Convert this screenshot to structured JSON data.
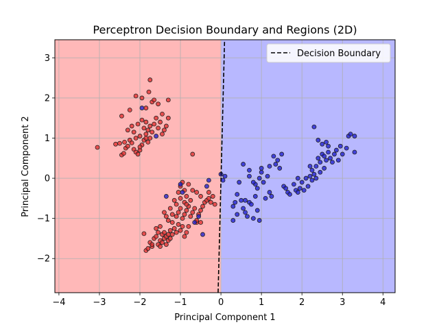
{
  "chart_data": {
    "type": "scatter",
    "title": "Perceptron Decision Boundary and Regions (2D)",
    "xlabel": "Principal Component 1",
    "ylabel": "Principal Component 2",
    "xlim": [
      -4.1,
      4.3
    ],
    "ylim": [
      -2.85,
      3.45
    ],
    "xticks": [
      -4,
      -3,
      -2,
      -1,
      0,
      1,
      2,
      3,
      4
    ],
    "xtick_labels": [
      "−4",
      "−3",
      "−2",
      "−1",
      "0",
      "1",
      "2",
      "3",
      "4"
    ],
    "yticks": [
      -2,
      -1,
      0,
      1,
      2,
      3
    ],
    "ytick_labels": [
      "−2",
      "−1",
      "0",
      "1",
      "2",
      "3"
    ],
    "grid": true,
    "legend_position": "top-right",
    "legend": [
      "Decision Boundary"
    ],
    "colors": {
      "region_left": "#ffb8b8",
      "region_right": "#b8b8ff",
      "class_left": "#e03030",
      "class_right": "#2020d0",
      "boundary": "#000000"
    },
    "boundary_line": {
      "x": [
        -0.07,
        0.09
      ],
      "y": [
        -2.85,
        3.45
      ]
    },
    "series": [
      {
        "color": "red",
        "points": [
          [
            -3.05,
            0.77
          ],
          [
            -2.6,
            0.85
          ],
          [
            -2.5,
            0.87
          ],
          [
            -2.45,
            0.58
          ],
          [
            -2.4,
            0.62
          ],
          [
            -2.38,
            0.9
          ],
          [
            -2.35,
            0.75
          ],
          [
            -2.3,
            0.8
          ],
          [
            -2.25,
            0.95
          ],
          [
            -2.2,
            0.88
          ],
          [
            -2.15,
            0.72
          ],
          [
            -2.1,
            0.65
          ],
          [
            -2.05,
            0.6
          ],
          [
            -2.0,
            0.7
          ],
          [
            -1.95,
            0.83
          ],
          [
            -2.1,
            1.0
          ],
          [
            -2.0,
            1.05
          ],
          [
            -1.9,
            0.95
          ],
          [
            -1.85,
            1.1
          ],
          [
            -1.8,
            0.9
          ],
          [
            -1.75,
            1.0
          ],
          [
            -2.3,
            1.2
          ],
          [
            -2.2,
            1.3
          ],
          [
            -2.15,
            1.15
          ],
          [
            -2.05,
            1.35
          ],
          [
            -1.95,
            1.45
          ],
          [
            -1.9,
            1.25
          ],
          [
            -1.85,
            1.4
          ],
          [
            -1.8,
            1.2
          ],
          [
            -1.75,
            1.3
          ],
          [
            -1.7,
            1.15
          ],
          [
            -1.65,
            1.35
          ],
          [
            -1.6,
            1.5
          ],
          [
            -1.55,
            1.25
          ],
          [
            -1.5,
            1.4
          ],
          [
            -1.45,
            1.1
          ],
          [
            -1.4,
            1.2
          ],
          [
            -1.35,
            1.3
          ],
          [
            -2.45,
            1.55
          ],
          [
            -2.25,
            1.7
          ],
          [
            -2.1,
            2.05
          ],
          [
            -1.95,
            2.0
          ],
          [
            -1.85,
            1.75
          ],
          [
            -1.78,
            2.15
          ],
          [
            -1.75,
            2.45
          ],
          [
            -1.7,
            1.9
          ],
          [
            -1.65,
            1.95
          ],
          [
            -1.55,
            1.85
          ],
          [
            -1.45,
            1.6
          ],
          [
            -1.3,
            1.95
          ],
          [
            -1.3,
            1.5
          ],
          [
            -1.85,
            1.0
          ],
          [
            -2.0,
            0.78
          ],
          [
            -1.9,
            -1.38
          ],
          [
            -1.85,
            -1.8
          ],
          [
            -1.8,
            -1.75
          ],
          [
            -1.75,
            -1.6
          ],
          [
            -1.7,
            -1.7
          ],
          [
            -1.65,
            -1.5
          ],
          [
            -1.6,
            -1.45
          ],
          [
            -1.55,
            -1.65
          ],
          [
            -1.5,
            -1.55
          ],
          [
            -1.5,
            -1.7
          ],
          [
            -1.45,
            -1.4
          ],
          [
            -1.45,
            -1.6
          ],
          [
            -1.4,
            -1.5
          ],
          [
            -1.4,
            -1.35
          ],
          [
            -1.35,
            -1.65
          ],
          [
            -1.35,
            -1.45
          ],
          [
            -1.3,
            -1.55
          ],
          [
            -1.3,
            -1.4
          ],
          [
            -1.25,
            -1.5
          ],
          [
            -1.25,
            -1.3
          ],
          [
            -1.2,
            -1.1
          ],
          [
            -1.2,
            -1.4
          ],
          [
            -1.15,
            -1.25
          ],
          [
            -1.1,
            -1.35
          ],
          [
            -1.05,
            -1.15
          ],
          [
            -1.0,
            -1.3
          ],
          [
            -0.95,
            -1.2
          ],
          [
            -0.9,
            -1.45
          ],
          [
            -0.85,
            -1.35
          ],
          [
            -0.8,
            -1.2
          ],
          [
            -1.3,
            -1.05
          ],
          [
            -1.35,
            -0.95
          ],
          [
            -1.4,
            -0.85
          ],
          [
            -1.25,
            -0.75
          ],
          [
            -1.2,
            -0.9
          ],
          [
            -1.1,
            -0.95
          ],
          [
            -1.05,
            -0.85
          ],
          [
            -1.0,
            -0.75
          ],
          [
            -0.95,
            -1.0
          ],
          [
            -0.9,
            -0.9
          ],
          [
            -0.85,
            -0.8
          ],
          [
            -0.8,
            -0.7
          ],
          [
            -0.75,
            -0.95
          ],
          [
            -0.7,
            -0.85
          ],
          [
            -0.65,
            -0.75
          ],
          [
            -0.6,
            -1.1
          ],
          [
            -0.55,
            -0.9
          ],
          [
            -0.5,
            -0.8
          ],
          [
            -0.45,
            -0.7
          ],
          [
            -0.4,
            -0.6
          ],
          [
            -0.35,
            -0.55
          ],
          [
            -0.3,
            -0.5
          ],
          [
            -0.25,
            -0.6
          ],
          [
            -0.2,
            -0.45
          ],
          [
            -0.15,
            -0.65
          ],
          [
            -0.3,
            -0.35
          ],
          [
            -0.5,
            -0.45
          ],
          [
            -0.6,
            -0.35
          ],
          [
            -0.7,
            -0.3
          ],
          [
            -0.75,
            -0.55
          ],
          [
            -0.85,
            -0.45
          ],
          [
            -0.9,
            -0.6
          ],
          [
            -1.0,
            -0.5
          ],
          [
            -1.05,
            -0.35
          ],
          [
            -1.0,
            -0.2
          ],
          [
            -0.95,
            -0.1
          ],
          [
            -0.9,
            -0.3
          ],
          [
            -0.8,
            -0.15
          ],
          [
            -0.7,
            0.6
          ],
          [
            -0.6,
            -1.05
          ],
          [
            -0.5,
            -1.1
          ],
          [
            -0.85,
            -0.65
          ],
          [
            -1.1,
            -0.65
          ],
          [
            -1.15,
            -0.55
          ],
          [
            -1.5,
            -1.2
          ],
          [
            -1.6,
            -1.25
          ],
          [
            -1.7,
            -1.65
          ],
          [
            -1.55,
            -1.35
          ]
        ]
      },
      {
        "color": "blue",
        "points": [
          [
            -1.95,
            1.75
          ],
          [
            -1.6,
            1.05
          ],
          [
            -1.35,
            -0.45
          ],
          [
            -1.0,
            -0.15
          ],
          [
            -0.95,
            -0.35
          ],
          [
            -0.65,
            -1.1
          ],
          [
            -0.55,
            -0.95
          ],
          [
            -0.45,
            -1.4
          ],
          [
            -0.35,
            -0.2
          ],
          [
            -0.3,
            -0.05
          ],
          [
            0.0,
            0.1
          ],
          [
            0.05,
            -0.05
          ],
          [
            0.1,
            0.05
          ],
          [
            0.3,
            -1.05
          ],
          [
            0.3,
            -0.7
          ],
          [
            0.35,
            -0.6
          ],
          [
            0.4,
            -0.9
          ],
          [
            0.45,
            -0.1
          ],
          [
            0.5,
            -0.55
          ],
          [
            0.55,
            -0.75
          ],
          [
            0.6,
            -0.55
          ],
          [
            0.65,
            -0.95
          ],
          [
            0.7,
            -0.6
          ],
          [
            0.7,
            0.05
          ],
          [
            0.75,
            -0.65
          ],
          [
            0.8,
            -1.0
          ],
          [
            0.85,
            -0.45
          ],
          [
            0.9,
            -0.8
          ],
          [
            0.9,
            -0.25
          ],
          [
            0.95,
            0.0
          ],
          [
            1.0,
            0.15
          ],
          [
            1.05,
            -0.1
          ],
          [
            1.1,
            -0.5
          ],
          [
            1.15,
            0.05
          ],
          [
            1.2,
            -0.35
          ],
          [
            1.25,
            -0.45
          ],
          [
            0.95,
            -1.05
          ],
          [
            0.85,
            -0.15
          ],
          [
            1.3,
            0.55
          ],
          [
            1.35,
            0.35
          ],
          [
            1.4,
            0.45
          ],
          [
            1.45,
            0.25
          ],
          [
            1.5,
            0.6
          ],
          [
            1.55,
            -0.2
          ],
          [
            1.6,
            -0.25
          ],
          [
            1.65,
            -0.35
          ],
          [
            1.7,
            -0.4
          ],
          [
            1.8,
            -0.15
          ],
          [
            1.85,
            -0.3
          ],
          [
            1.9,
            -0.35
          ],
          [
            1.95,
            -0.25
          ],
          [
            2.0,
            -0.1
          ],
          [
            2.05,
            -0.3
          ],
          [
            2.1,
            0.0
          ],
          [
            2.15,
            -0.2
          ],
          [
            2.2,
            0.05
          ],
          [
            2.25,
            -0.05
          ],
          [
            2.3,
            0.1
          ],
          [
            2.35,
            0.3
          ],
          [
            2.4,
            0.5
          ],
          [
            2.45,
            0.4
          ],
          [
            2.5,
            0.6
          ],
          [
            2.55,
            0.55
          ],
          [
            2.6,
            0.45
          ],
          [
            2.65,
            0.65
          ],
          [
            2.7,
            0.5
          ],
          [
            2.75,
            0.4
          ],
          [
            2.8,
            0.6
          ],
          [
            2.85,
            0.7
          ],
          [
            2.9,
            0.45
          ],
          [
            2.95,
            0.8
          ],
          [
            3.0,
            0.6
          ],
          [
            3.1,
            0.75
          ],
          [
            3.15,
            1.05
          ],
          [
            3.2,
            1.1
          ],
          [
            3.3,
            1.05
          ],
          [
            3.3,
            0.65
          ],
          [
            2.3,
            1.28
          ],
          [
            2.4,
            0.95
          ],
          [
            2.5,
            0.85
          ],
          [
            2.6,
            0.9
          ],
          [
            2.65,
            0.8
          ],
          [
            2.2,
            0.3
          ],
          [
            2.25,
            0.2
          ],
          [
            2.35,
            0.0
          ],
          [
            2.45,
            0.15
          ],
          [
            2.55,
            0.25
          ],
          [
            1.9,
            0.0
          ],
          [
            1.0,
            0.25
          ],
          [
            0.8,
            -0.1
          ],
          [
            1.2,
            0.3
          ],
          [
            0.4,
            -0.4
          ],
          [
            0.6,
            -0.85
          ],
          [
            0.7,
            0.2
          ],
          [
            0.55,
            0.35
          ]
        ]
      }
    ]
  }
}
